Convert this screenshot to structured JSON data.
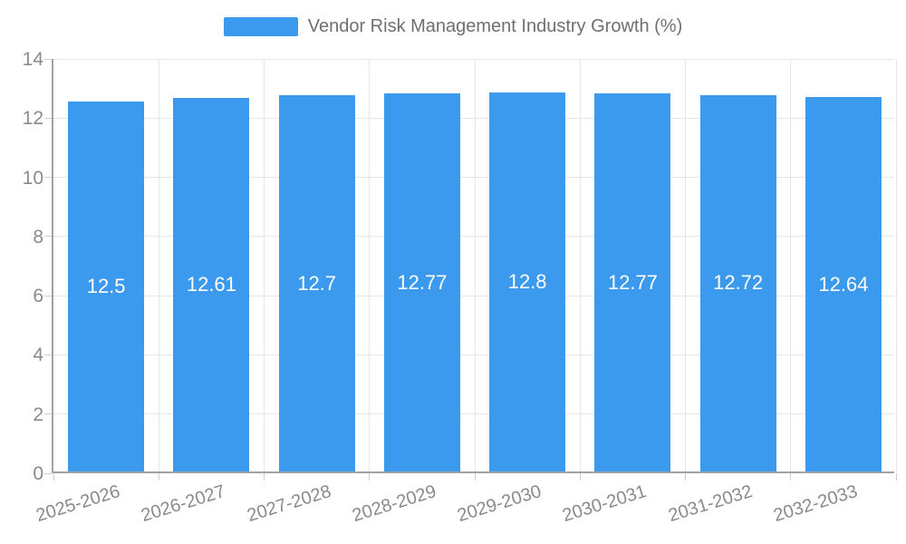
{
  "chart_data": {
    "type": "bar",
    "title": "Vendor Risk Management Industry Growth (%)",
    "categories": [
      "2025-2026",
      "2026-2027",
      "2027-2028",
      "2028-2029",
      "2029-2030",
      "2030-2031",
      "2031-2032",
      "2032-2033"
    ],
    "values": [
      12.5,
      12.61,
      12.7,
      12.77,
      12.8,
      12.77,
      12.72,
      12.64
    ],
    "value_labels": [
      "12.5",
      "12.61",
      "12.7",
      "12.77",
      "12.8",
      "12.77",
      "12.72",
      "12.64"
    ],
    "xlabel": "",
    "ylabel": "",
    "ylim": [
      0,
      14
    ],
    "yticks": [
      0,
      2,
      4,
      6,
      8,
      10,
      12,
      14
    ],
    "grid": true,
    "legend_position": "top-center",
    "bar_color": "#3b99ee",
    "colors": {
      "grid": "#e6e6e6",
      "axis_line": "#a2a2a2",
      "tick": "#cfcfcf",
      "axis_label": "#8a8a8a",
      "title": "#6f6f6f",
      "value_label": "#ffffff",
      "background": "#ffffff"
    }
  }
}
